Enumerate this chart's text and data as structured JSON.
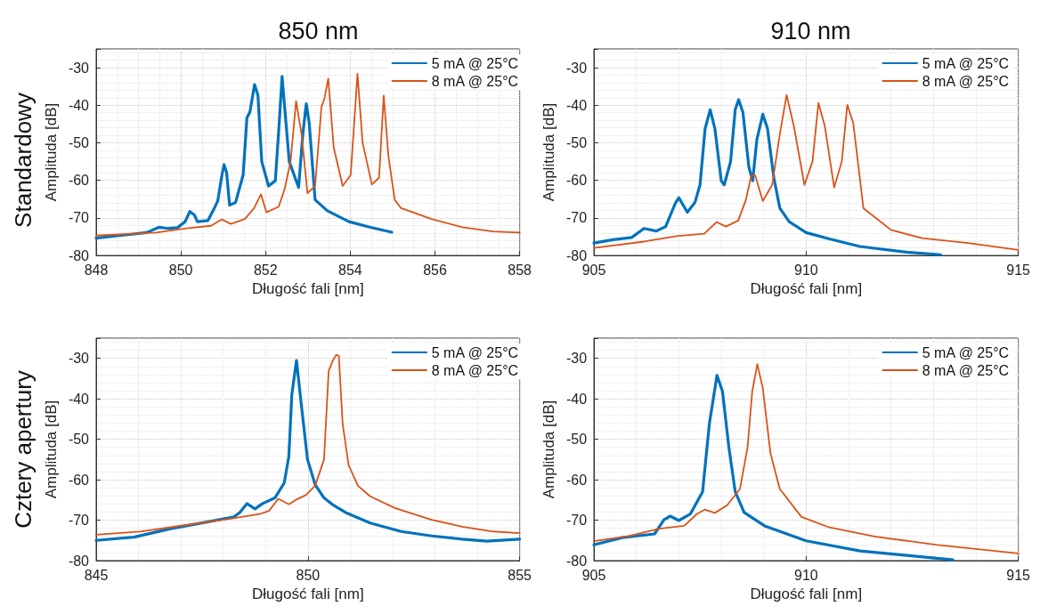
{
  "chart_data": [
    {
      "type": "line",
      "title": "850 nm",
      "annotations": [
        "Standardowy"
      ],
      "xlabel": "Długość fali [nm]",
      "ylabel": "Amplituda [dB]",
      "xlim": [
        848,
        858
      ],
      "xticks": [
        848,
        850,
        852,
        854,
        856,
        858
      ],
      "ylim": [
        -80,
        -25
      ],
      "yticks": [
        -80,
        -70,
        -60,
        -50,
        -40,
        -30
      ],
      "grid": true,
      "legend": "top right",
      "marker": "none",
      "line_style": "solid",
      "series": [
        {
          "name": "5 mA @ 25°C",
          "color": "#0072bd",
          "x": [
            848,
            848.54,
            849.19,
            849.48,
            849.7,
            849.92,
            850.1,
            850.21,
            850.32,
            850.39,
            850.64,
            850.79,
            850.87,
            850.97,
            851.02,
            851.08,
            851.15,
            851.29,
            851.47,
            851.56,
            851.63,
            851.74,
            851.82,
            851.91,
            852.07,
            852.23,
            852.31,
            852.39,
            852.46,
            852.56,
            852.78,
            852.88,
            852.96,
            853.03,
            853.17,
            853.46,
            853.97,
            854.48,
            854.98
          ],
          "values": [
            -75.4,
            -74.7,
            -73.9,
            -72.5,
            -72.8,
            -72.6,
            -71,
            -68.3,
            -69.2,
            -71,
            -70.7,
            -67.4,
            -65.5,
            -58.6,
            -55.8,
            -57.9,
            -66.6,
            -65.9,
            -58.6,
            -43.3,
            -41.8,
            -34.5,
            -37.4,
            -55,
            -61.5,
            -60.1,
            -46.9,
            -32.3,
            -41.8,
            -55,
            -61.9,
            -47.7,
            -39.6,
            -44.7,
            -65.2,
            -68.1,
            -71,
            -72.5,
            -73.8
          ]
        },
        {
          "name": "8 mA @ 25°C",
          "color": "#d95319",
          "x": [
            848,
            849.41,
            850.13,
            850.71,
            850.97,
            851.18,
            851.51,
            851.73,
            851.89,
            852.02,
            852.31,
            852.45,
            852.59,
            852.72,
            852.85,
            852.99,
            853.17,
            853.32,
            853.39,
            853.48,
            853.61,
            853.82,
            854.01,
            854.17,
            854.29,
            854.51,
            854.68,
            854.79,
            854.9,
            855.05,
            855.2,
            855.92,
            856.65,
            857.37,
            858
          ],
          "values": [
            -74.7,
            -73.9,
            -72.8,
            -72.1,
            -70.4,
            -71.6,
            -70.3,
            -67.4,
            -63.7,
            -68.5,
            -67,
            -62.3,
            -55,
            -38.9,
            -47.7,
            -63.4,
            -61.5,
            -40.4,
            -38.2,
            -32.9,
            -51.3,
            -61.5,
            -58.6,
            -31.6,
            -49.9,
            -61.1,
            -59.3,
            -37.4,
            -53.5,
            -65.2,
            -67.4,
            -70.3,
            -72.5,
            -73.6,
            -73.9
          ]
        }
      ]
    },
    {
      "type": "line",
      "title": "910 nm",
      "xlabel": "Długość fali [nm]",
      "ylabel": "Amplituda [dB]",
      "xlim": [
        905,
        915
      ],
      "xticks": [
        905,
        910,
        915
      ],
      "ylim": [
        -80,
        -25
      ],
      "yticks": [
        -80,
        -70,
        -60,
        -50,
        -40,
        -30
      ],
      "grid": true,
      "legend": "top right",
      "marker": "none",
      "line_style": "solid",
      "series": [
        {
          "name": "5 mA @ 25°C",
          "color": "#0072bd",
          "x": [
            905,
            905.45,
            905.89,
            906.18,
            906.47,
            906.69,
            906.91,
            907,
            907.2,
            907.38,
            907.5,
            907.62,
            907.74,
            907.85,
            908,
            908.07,
            908.22,
            908.33,
            908.41,
            908.51,
            908.65,
            908.74,
            908.84,
            908.98,
            909.09,
            909.24,
            909.38,
            909.6,
            910,
            910.55,
            911.27,
            912.37,
            913.17
          ],
          "values": [
            -76.7,
            -75.8,
            -75.2,
            -72.8,
            -73.5,
            -72.3,
            -66.3,
            -64.6,
            -68.5,
            -65.9,
            -61.2,
            -46.2,
            -41.2,
            -46.2,
            -60.1,
            -61.2,
            -55,
            -41.1,
            -38.5,
            -41.8,
            -56.4,
            -60.1,
            -49.1,
            -42.4,
            -46.2,
            -59.3,
            -67.4,
            -71,
            -73.9,
            -75.6,
            -77.6,
            -79.1,
            -79.8
          ]
        },
        {
          "name": "8 mA @ 25°C",
          "color": "#d95319",
          "x": [
            905,
            906.18,
            906.98,
            907.6,
            907.89,
            908.11,
            908.4,
            908.58,
            908.71,
            908.8,
            908.98,
            909.2,
            909.38,
            909.54,
            909.71,
            909.96,
            910.15,
            910.29,
            910.44,
            910.66,
            910.84,
            910.97,
            911.11,
            911.35,
            912,
            912.73,
            913.82,
            915
          ],
          "values": [
            -78,
            -76.3,
            -74.8,
            -74.2,
            -71.1,
            -72.3,
            -70.7,
            -65.2,
            -58.6,
            -58.7,
            -65.5,
            -61.2,
            -47.7,
            -37.3,
            -45.5,
            -61.2,
            -55,
            -39.4,
            -45.5,
            -61.9,
            -55,
            -39.9,
            -44.7,
            -67.4,
            -73.2,
            -75.4,
            -76.7,
            -78.5
          ]
        }
      ]
    },
    {
      "type": "line",
      "annotations": [
        "Cztery apertury"
      ],
      "xlabel": "Długość fali [nm]",
      "ylabel": "Amplituda [dB]",
      "xlim": [
        845,
        855
      ],
      "xticks": [
        845,
        850,
        855
      ],
      "ylim": [
        -80,
        -25
      ],
      "yticks": [
        -80,
        -70,
        -60,
        -50,
        -40,
        -30
      ],
      "grid": true,
      "legend": "top right",
      "marker": "none",
      "line_style": "solid",
      "series": [
        {
          "name": "5 mA @ 25°C",
          "color": "#0072bd",
          "x": [
            845,
            845.89,
            846.76,
            847.7,
            848.25,
            848.39,
            848.56,
            848.75,
            848.93,
            849.22,
            849.44,
            849.55,
            849.62,
            849.73,
            849.84,
            849.99,
            850.17,
            850.38,
            850.6,
            850.89,
            851.47,
            852.2,
            852.92,
            853.64,
            854.22,
            855
          ],
          "values": [
            -75,
            -74.2,
            -72.1,
            -70.3,
            -69.2,
            -68.1,
            -65.9,
            -67.2,
            -65.9,
            -64.5,
            -60.8,
            -54.2,
            -38.9,
            -30.5,
            -41.1,
            -55,
            -61.2,
            -64.5,
            -66.3,
            -68.1,
            -70.7,
            -72.8,
            -73.9,
            -74.7,
            -75.2,
            -74.7
          ]
        },
        {
          "name": "8 mA @ 25°C",
          "color": "#d95319",
          "x": [
            845,
            846.04,
            847.12,
            848.14,
            848.86,
            849.08,
            849.3,
            849.55,
            849.73,
            849.95,
            850.17,
            850.38,
            850.49,
            850.59,
            850.67,
            850.73,
            850.82,
            850.96,
            851.18,
            851.47,
            852.05,
            852.92,
            853.64,
            854.37,
            855
          ],
          "values": [
            -73.6,
            -72.8,
            -71.2,
            -69.7,
            -68.5,
            -67.7,
            -64.7,
            -66.1,
            -64.9,
            -63.8,
            -61.5,
            -55,
            -33.1,
            -30.5,
            -29.1,
            -29.4,
            -46.2,
            -56.4,
            -61.5,
            -64.1,
            -67,
            -69.9,
            -71.6,
            -72.8,
            -73.2
          ]
        }
      ]
    },
    {
      "type": "line",
      "xlabel": "Długość fali [nm]",
      "ylabel": "Amplituda [dB]",
      "xlim": [
        905,
        915
      ],
      "xticks": [
        905,
        910,
        915
      ],
      "ylim": [
        -80,
        -25
      ],
      "yticks": [
        -80,
        -70,
        -60,
        -50,
        -40,
        -30
      ],
      "grid": true,
      "legend": "top right",
      "marker": "none",
      "line_style": "solid",
      "series": [
        {
          "name": "5 mA @ 25°C",
          "color": "#0072bd",
          "x": [
            905,
            905.67,
            906.43,
            906.65,
            906.8,
            907,
            907.27,
            907.56,
            907.72,
            907.9,
            908.03,
            908.18,
            908.33,
            908.54,
            909.02,
            910,
            911.27,
            912.37,
            913.46
          ],
          "values": [
            -76.1,
            -74.3,
            -73.4,
            -69.9,
            -69,
            -70.1,
            -68.5,
            -63,
            -46.2,
            -34.2,
            -38.2,
            -52,
            -63,
            -68.1,
            -71.4,
            -75.1,
            -77.6,
            -78.7,
            -79.8
          ]
        },
        {
          "name": "8 mA @ 25°C",
          "color": "#d95319",
          "x": [
            905,
            905.82,
            906.54,
            907.13,
            907.42,
            907.61,
            907.85,
            908.14,
            908.44,
            908.62,
            908.73,
            908.85,
            908.98,
            909.16,
            909.38,
            909.89,
            910.55,
            911.64,
            913.09,
            915
          ],
          "values": [
            -75.2,
            -73.9,
            -72.1,
            -71.4,
            -68.5,
            -67.4,
            -68.2,
            -66.3,
            -62.3,
            -52,
            -38.2,
            -31.4,
            -37.4,
            -53.5,
            -62.3,
            -69.2,
            -71.8,
            -74.1,
            -76.1,
            -78.2
          ]
        }
      ]
    }
  ]
}
